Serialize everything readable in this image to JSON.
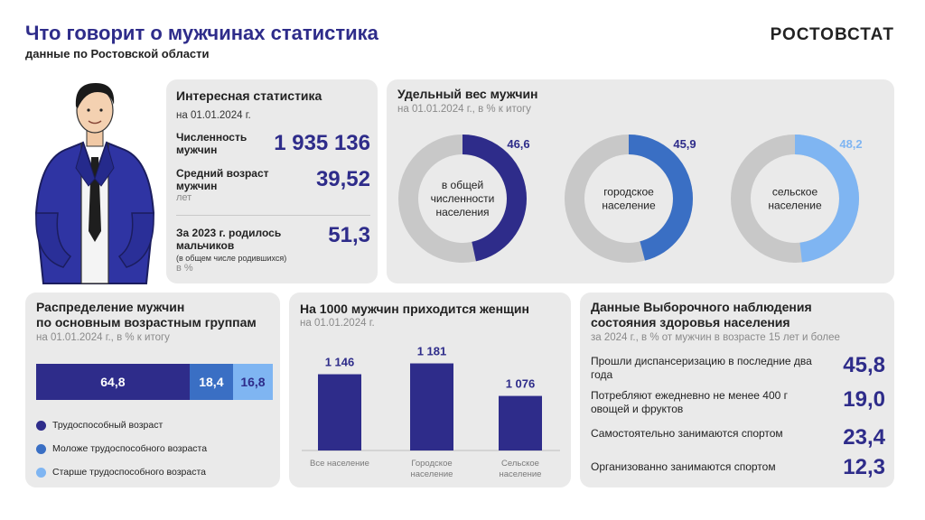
{
  "header": {
    "title": "Что говорит о мужчинах статистика",
    "subtitle": "данные по Ростовской области",
    "brand": "РОСТОВСТАТ"
  },
  "stats": {
    "title": "Интересная статистика",
    "date": "на 01.01.2024 г.",
    "items": [
      {
        "label": "Численность мужчин",
        "value": "1 935 136",
        "note": "",
        "unit": ""
      },
      {
        "label": "Средний возраст мужчин",
        "value": "39,52",
        "note": "",
        "unit": "лет"
      },
      {
        "label": "За 2023 г. родилось мальчиков",
        "value": "51,3",
        "note": "(в общем числе родившихся)",
        "unit": "в %"
      }
    ]
  },
  "share": {
    "title": "Удельный вес мужчин",
    "subtitle": "на 01.01.2024 г., в % к итогу",
    "donuts": [
      {
        "label": [
          "в общей",
          "численности",
          "населения"
        ],
        "value": 46.6,
        "value_text": "46,6",
        "color": "#2e2c8a"
      },
      {
        "label": [
          "городское",
          "население"
        ],
        "value": 45.9,
        "value_text": "45,9",
        "color": "#3a6fc4"
      },
      {
        "label": [
          "сельское",
          "население"
        ],
        "value": 48.2,
        "value_text": "48,2",
        "color": "#7fb5f2"
      }
    ],
    "track_color": "#c8c8c8"
  },
  "age": {
    "title_line1": "Распределение мужчин",
    "title_line2": "по основным возрастным группам",
    "subtitle": "на 01.01.2024 г., в % к итогу",
    "segments": [
      {
        "name": "Трудоспособный возраст",
        "value": 64.8,
        "value_text": "64,8",
        "color": "#2e2c8a",
        "text_color": "#ffffff"
      },
      {
        "name": "Моложе трудоспособного возраста",
        "value": 18.4,
        "value_text": "18,4",
        "color": "#3a6fc4",
        "text_color": "#ffffff"
      },
      {
        "name": "Старше трудоспособного возраста",
        "value": 16.8,
        "value_text": "16,8",
        "color": "#7fb5f2",
        "text_color": "#2e2c8a"
      }
    ]
  },
  "women": {
    "title": "На 1000 мужчин приходится женщин",
    "subtitle": "на 01.01.2024 г."
  },
  "chart_data": {
    "type": "bar",
    "title": "На 1000 мужчин приходится женщин",
    "categories": [
      [
        "Все население"
      ],
      [
        "Городское",
        "население"
      ],
      [
        "Сельское",
        "население"
      ]
    ],
    "values": [
      1146,
      1181,
      1076
    ],
    "value_labels": [
      "1 146",
      "1 181",
      "1 076"
    ],
    "color": "#2e2c8a",
    "ylim": [
      900,
      1200
    ]
  },
  "health": {
    "title_line1": "Данные Выборочного наблюдения",
    "title_line2": "состояния здоровья населения",
    "subtitle": "за 2024 г., в % от мужчин в возрасте 15 лет и более",
    "items": [
      {
        "label": "Прошли диспансеризацию в последние два года",
        "value": "45,8"
      },
      {
        "label": "Потребляют ежедневно не менее 400 г овощей и фруктов",
        "value": "19,0"
      },
      {
        "label": "Самостоятельно занимаются спортом",
        "value": "23,4"
      },
      {
        "label": "Организованно занимаются спортом",
        "value": "12,3"
      }
    ]
  }
}
